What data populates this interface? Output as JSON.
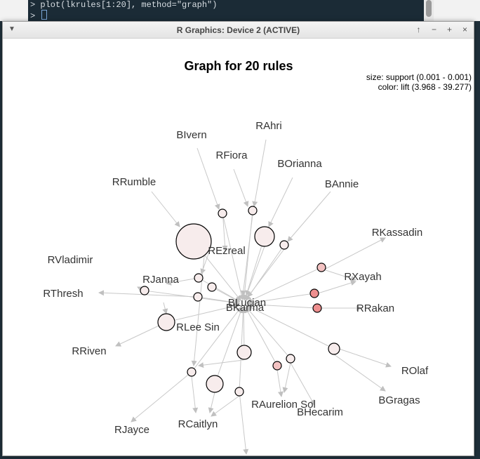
{
  "console": {
    "line1": "> plot(lkrules[1:20], method=\"graph\")",
    "line2": "> "
  },
  "window": {
    "title": "R Graphics: Device 2 (ACTIVE)",
    "menu_icon": "triangle-down",
    "buttons": {
      "raise": "↑",
      "minimize": "−",
      "maximize": "+",
      "close": "×"
    }
  },
  "chart_data": {
    "type": "graph",
    "title": "Graph for 20 rules",
    "legend": {
      "size": "size: support (0.001 - 0.001)",
      "color": "color: lift (3.968 - 39.277)"
    },
    "center_labels": [
      "BLucian",
      "BKarma"
    ],
    "items": [
      "BIvern",
      "RAhri",
      "RFiora",
      "BOrianna",
      "BAnnie",
      "RRumble",
      "RKassadin",
      "REzreal",
      "RVladimir",
      "RJanna",
      "RXayah",
      "RThresh",
      "RRakan",
      "RLee Sin",
      "RRiven",
      "ROlaf",
      "BGragas",
      "RAurelion Sol",
      "BHecarim",
      "RCaitlyn",
      "RJayce"
    ],
    "colors": {
      "low_lift": "#f7ecec",
      "mid_lift": "#f3c2c2",
      "high_lift": "#ee8f8f",
      "edge": "#c8c8c8"
    }
  }
}
